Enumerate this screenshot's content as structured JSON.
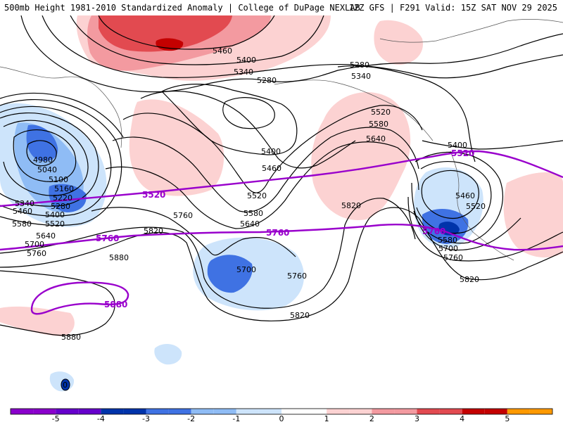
{
  "header": {
    "left": "500mb Height 1981-2010 Standardized Anomaly | College of DuPage NEXLAB",
    "right": "12Z GFS | F291 Valid: 15Z SAT NOV 29 2025"
  },
  "colors": {
    "anom_pos_1": "#fcd2d2",
    "anom_pos_2": "#f39aa0",
    "anom_pos_3": "#e24a50",
    "anom_pos_4": "#c40000",
    "anom_pos_5": "#ff9900",
    "anom_neg_1": "#cde4fb",
    "anom_neg_2": "#8fbcf5",
    "anom_neg_3": "#3f72e3",
    "anom_neg_4": "#0033aa",
    "anom_neg_5": "#8a00cc",
    "contour": "#000000",
    "climo": "#9900cc"
  },
  "contour_labels": {
    "l5460_n": "5460",
    "l5400_n": "5400",
    "l5340_n": "5340",
    "l5280_n": "5280",
    "l5280_ne": "5280",
    "l5340_ne": "5340",
    "l4980": "4980",
    "l5040": "5040",
    "l5100": "5100",
    "l5160": "5160",
    "l5220": "5220",
    "l5280_w": "5280",
    "l5340_w": "5340",
    "l5460_w": "5460",
    "l5400_w": "5400",
    "l5520_w": "5520",
    "l5580_w": "5580",
    "l5640_w": "5640",
    "l5700_w": "5700",
    "l5760_w": "5760",
    "l5880_w": "5880",
    "l5880_sw": "5880",
    "l5400_c": "5400",
    "l5460_c": "5460",
    "l5520_c": "5520",
    "l5580_c": "5580",
    "l5640_c": "5640",
    "l5760_c": "5760",
    "l5820_c": "5820",
    "l5700_c": "5700",
    "l5760_cs": "5760",
    "l5820_cs": "5820",
    "l5520_ne": "5520",
    "l5580_ne": "5580",
    "l5640_ne": "5640",
    "l5820_ce": "5820",
    "l5400_e": "5400",
    "l5460_e": "5460",
    "l5520_e": "5520",
    "l5580_e": "5580",
    "l5700_e": "5700",
    "l5760_e": "5760",
    "l5820_e": "5820"
  },
  "climo_labels": {
    "c5520_w": "5520",
    "c5520_e": "5520",
    "c5760_w": "5760",
    "c5760_c": "5760",
    "c5760_e": "5760",
    "c5880": "5880"
  },
  "colorbar": {
    "ticks": [
      "-5",
      "-4",
      "-3",
      "-2",
      "-1",
      "0",
      "1",
      "2",
      "3",
      "4",
      "5"
    ],
    "bins": [
      -5,
      -4,
      -3,
      -2,
      -1,
      0,
      1,
      2,
      3,
      4,
      5
    ],
    "bin_step": 0.5
  },
  "misc": {
    "low_marker": "0"
  }
}
